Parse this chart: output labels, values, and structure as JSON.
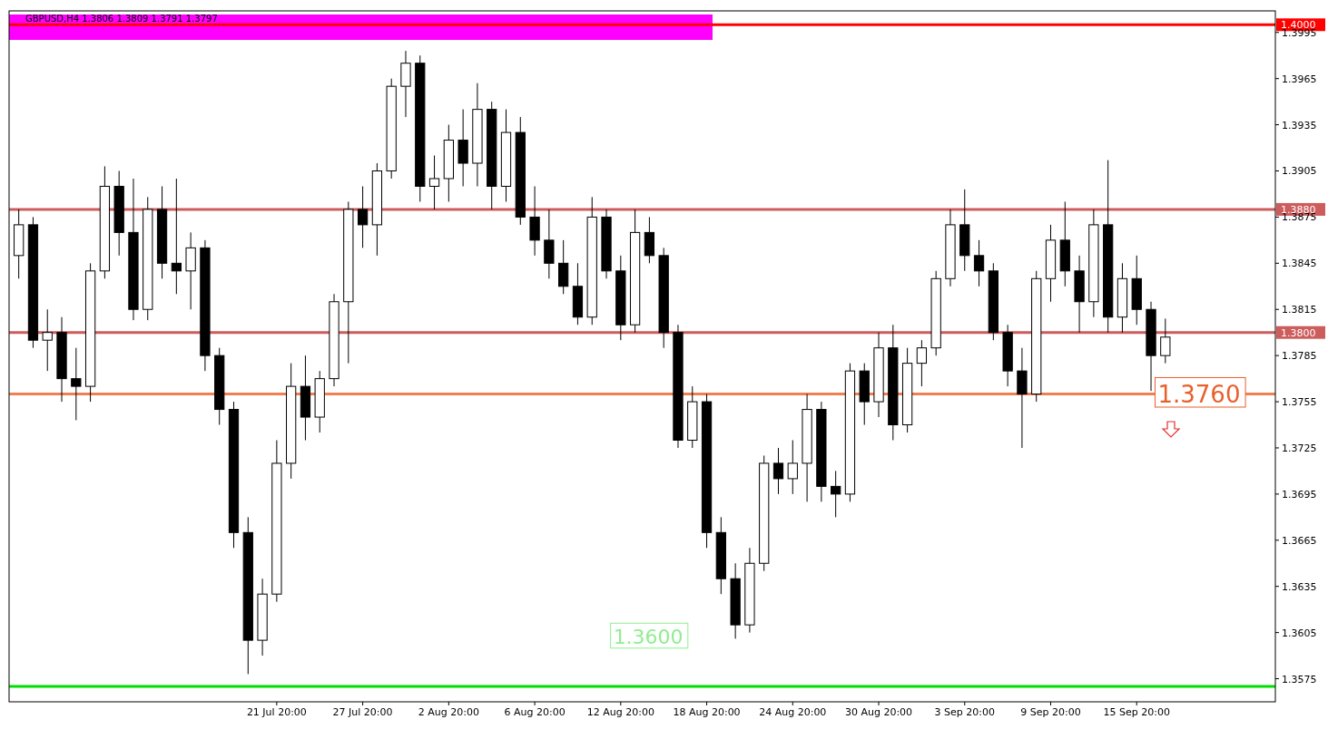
{
  "chart_data": {
    "type": "candlestick",
    "title": "GBPUSD,H4  1.3806 1.3809 1.3791 1.3797",
    "categories": [
      null,
      null,
      null,
      null,
      null,
      null,
      null,
      null,
      null,
      null,
      null,
      null,
      null,
      null,
      null,
      null,
      null,
      null,
      "21 Jul 20:00",
      null,
      null,
      null,
      null,
      null,
      "27 Jul 20:00",
      null,
      null,
      null,
      null,
      null,
      "2 Aug 20:00",
      null,
      null,
      null,
      null,
      null,
      "6 Aug 20:00",
      null,
      null,
      null,
      null,
      null,
      "12 Aug 20:00",
      null,
      null,
      null,
      null,
      null,
      "18 Aug 20:00",
      null,
      null,
      null,
      null,
      null,
      "24 Aug 20:00",
      null,
      null,
      null,
      null,
      null,
      "30 Aug 20:00",
      null,
      null,
      null,
      null,
      null,
      "3 Sep 20:00",
      null,
      null,
      null,
      null,
      null,
      "9 Sep 20:00",
      null,
      null,
      null,
      null,
      null,
      "15 Sep 20:00",
      null,
      null,
      null,
      null,
      null,
      null,
      null,
      null,
      null
    ],
    "ohlc": [
      [
        1.385,
        1.388,
        1.3835,
        1.387
      ],
      [
        1.387,
        1.3875,
        1.379,
        1.3795
      ],
      [
        1.3795,
        1.3815,
        1.3775,
        1.38
      ],
      [
        1.38,
        1.381,
        1.3755,
        1.377
      ],
      [
        1.377,
        1.379,
        1.3743,
        1.3765
      ],
      [
        1.3765,
        1.3845,
        1.3755,
        1.384
      ],
      [
        1.384,
        1.3908,
        1.3835,
        1.3895
      ],
      [
        1.3895,
        1.3905,
        1.385,
        1.3865
      ],
      [
        1.3865,
        1.39,
        1.3808,
        1.3815
      ],
      [
        1.3815,
        1.3888,
        1.3808,
        1.388
      ],
      [
        1.388,
        1.3895,
        1.3835,
        1.3845
      ],
      [
        1.3845,
        1.39,
        1.3825,
        1.384
      ],
      [
        1.384,
        1.3865,
        1.3815,
        1.3855
      ],
      [
        1.3855,
        1.386,
        1.3775,
        1.3785
      ],
      [
        1.3785,
        1.379,
        1.374,
        1.375
      ],
      [
        1.375,
        1.3755,
        1.366,
        1.367
      ],
      [
        1.367,
        1.368,
        1.3578,
        1.36
      ],
      [
        1.36,
        1.364,
        1.359,
        1.363
      ],
      [
        1.363,
        1.373,
        1.3625,
        1.3715
      ],
      [
        1.3715,
        1.378,
        1.3705,
        1.3765
      ],
      [
        1.3765,
        1.3785,
        1.373,
        1.3745
      ],
      [
        1.3745,
        1.3775,
        1.3735,
        1.377
      ],
      [
        1.377,
        1.3825,
        1.3765,
        1.382
      ],
      [
        1.382,
        1.3885,
        1.378,
        1.388
      ],
      [
        1.388,
        1.3895,
        1.3855,
        1.387
      ],
      [
        1.387,
        1.391,
        1.385,
        1.3905
      ],
      [
        1.3905,
        1.3965,
        1.39,
        1.396
      ],
      [
        1.396,
        1.3983,
        1.394,
        1.3975
      ],
      [
        1.3975,
        1.398,
        1.3885,
        1.3895
      ],
      [
        1.3895,
        1.3915,
        1.388,
        1.39
      ],
      [
        1.39,
        1.3935,
        1.3885,
        1.3925
      ],
      [
        1.3925,
        1.3945,
        1.3895,
        1.391
      ],
      [
        1.391,
        1.3962,
        1.3895,
        1.3945
      ],
      [
        1.3945,
        1.395,
        1.388,
        1.3895
      ],
      [
        1.3895,
        1.3945,
        1.3885,
        1.393
      ],
      [
        1.393,
        1.394,
        1.387,
        1.3875
      ],
      [
        1.3875,
        1.3895,
        1.385,
        1.386
      ],
      [
        1.386,
        1.388,
        1.3835,
        1.3845
      ],
      [
        1.3845,
        1.386,
        1.3825,
        1.383
      ],
      [
        1.383,
        1.3845,
        1.3805,
        1.381
      ],
      [
        1.381,
        1.3888,
        1.3805,
        1.3875
      ],
      [
        1.3875,
        1.388,
        1.3835,
        1.384
      ],
      [
        1.384,
        1.385,
        1.3795,
        1.3805
      ],
      [
        1.3805,
        1.388,
        1.38,
        1.3865
      ],
      [
        1.3865,
        1.3875,
        1.3845,
        1.385
      ],
      [
        1.385,
        1.3855,
        1.379,
        1.38
      ],
      [
        1.38,
        1.3805,
        1.3725,
        1.373
      ],
      [
        1.373,
        1.3765,
        1.3725,
        1.3755
      ],
      [
        1.3755,
        1.376,
        1.366,
        1.367
      ],
      [
        1.367,
        1.368,
        1.363,
        1.364
      ],
      [
        1.364,
        1.365,
        1.3601,
        1.361
      ],
      [
        1.361,
        1.366,
        1.3605,
        1.365
      ],
      [
        1.365,
        1.372,
        1.3645,
        1.3715
      ],
      [
        1.3715,
        1.3725,
        1.3695,
        1.3705
      ],
      [
        1.3705,
        1.373,
        1.3695,
        1.3715
      ],
      [
        1.3715,
        1.376,
        1.369,
        1.375
      ],
      [
        1.375,
        1.3755,
        1.369,
        1.37
      ],
      [
        1.37,
        1.371,
        1.368,
        1.3695
      ],
      [
        1.3695,
        1.378,
        1.369,
        1.3775
      ],
      [
        1.3775,
        1.378,
        1.374,
        1.3755
      ],
      [
        1.3755,
        1.38,
        1.3745,
        1.379
      ],
      [
        1.379,
        1.3805,
        1.373,
        1.374
      ],
      [
        1.374,
        1.379,
        1.3735,
        1.378
      ],
      [
        1.378,
        1.3795,
        1.3765,
        1.379
      ],
      [
        1.379,
        1.384,
        1.3785,
        1.3835
      ],
      [
        1.3835,
        1.388,
        1.383,
        1.387
      ],
      [
        1.387,
        1.3893,
        1.384,
        1.385
      ],
      [
        1.385,
        1.386,
        1.383,
        1.384
      ],
      [
        1.384,
        1.3845,
        1.3795,
        1.38
      ],
      [
        1.38,
        1.3805,
        1.3765,
        1.3775
      ],
      [
        1.3775,
        1.379,
        1.3725,
        1.376
      ],
      [
        1.376,
        1.384,
        1.3755,
        1.3835
      ],
      [
        1.3835,
        1.387,
        1.382,
        1.386
      ],
      [
        1.386,
        1.3885,
        1.383,
        1.384
      ],
      [
        1.384,
        1.385,
        1.38,
        1.382
      ],
      [
        1.382,
        1.388,
        1.381,
        1.387
      ],
      [
        1.387,
        1.3912,
        1.38,
        1.381
      ],
      [
        1.381,
        1.3845,
        1.38,
        1.3835
      ],
      [
        1.3835,
        1.385,
        1.3805,
        1.3815
      ],
      [
        1.3815,
        1.382,
        1.3762,
        1.3785
      ],
      [
        1.3785,
        1.3809,
        1.378,
        1.3797
      ],
      null,
      null,
      null,
      null,
      null,
      null,
      null
    ],
    "ylim": [
      1.356,
      1.4009
    ],
    "yticks": [
      1.3575,
      1.3605,
      1.3635,
      1.3665,
      1.3695,
      1.3725,
      1.3755,
      1.3785,
      1.3815,
      1.3845,
      1.3875,
      1.3905,
      1.3935,
      1.3965,
      1.3995
    ],
    "ref_lines": [
      {
        "axis": "y",
        "value": 1.4,
        "label": "1.4000",
        "color": "#ff0000"
      },
      {
        "axis": "y",
        "value": 1.388,
        "label": "1.3880",
        "color": "#cd5c5c"
      },
      {
        "axis": "y",
        "value": 1.38,
        "label": "1.3800",
        "color": "#cd5c5c"
      },
      {
        "axis": "y",
        "value": 1.376,
        "color": "#f08050"
      },
      {
        "axis": "y",
        "value": 1.357,
        "color": "#00e000"
      }
    ],
    "annotations": [
      "1.3760",
      "1.3600"
    ],
    "grid": false
  }
}
